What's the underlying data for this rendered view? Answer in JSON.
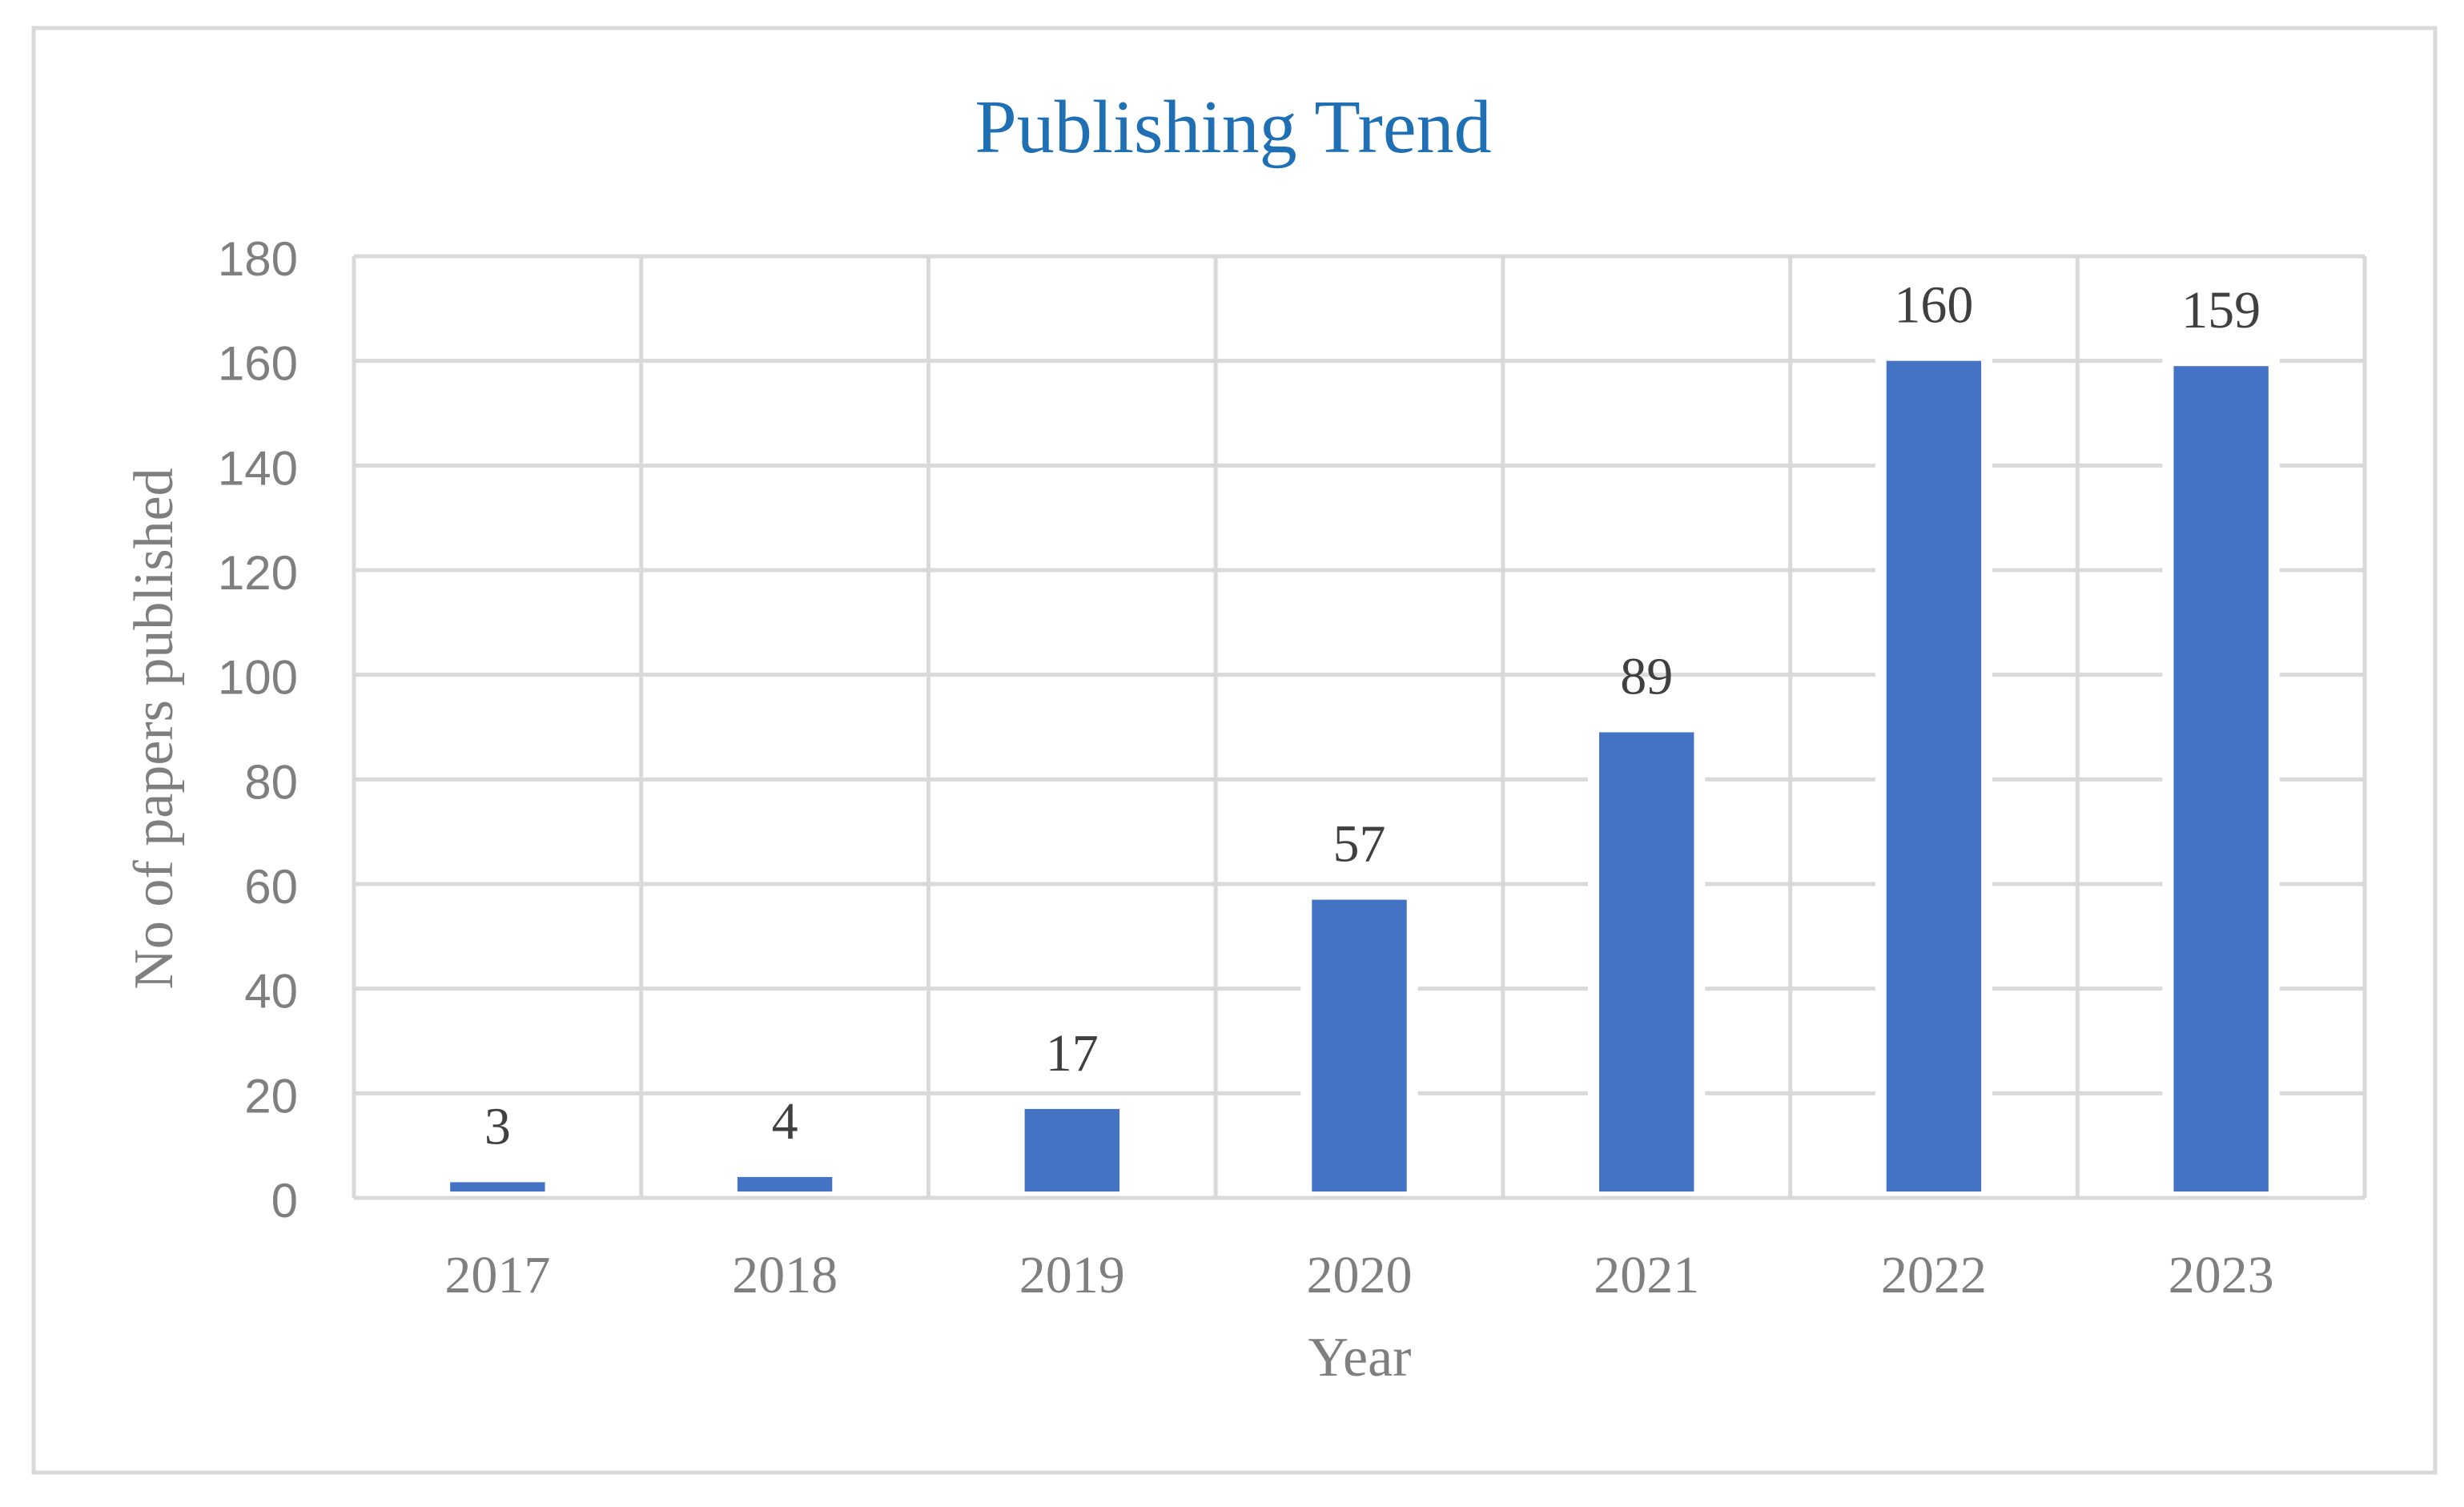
{
  "chart_data": {
    "type": "bar",
    "title": "Publishing Trend",
    "xlabel": "Year",
    "ylabel": "No of papers published",
    "categories": [
      "2017",
      "2018",
      "2019",
      "2020",
      "2021",
      "2022",
      "2023"
    ],
    "values": [
      3,
      4,
      17,
      57,
      89,
      160,
      159
    ],
    "ylim": [
      0,
      180
    ],
    "yticks": [
      "0",
      "20",
      "40",
      "60",
      "80",
      "100",
      "120",
      "140",
      "160",
      "180"
    ],
    "grid": "on",
    "data_labels": "on",
    "legend": "none"
  },
  "colors": {
    "bar": "#4472C4",
    "title": "#1F6FB5",
    "axis_text": "#7F7F7F",
    "data_label": "#404040",
    "grid": "#D9D9D9",
    "frame": "#D9D9D9"
  }
}
